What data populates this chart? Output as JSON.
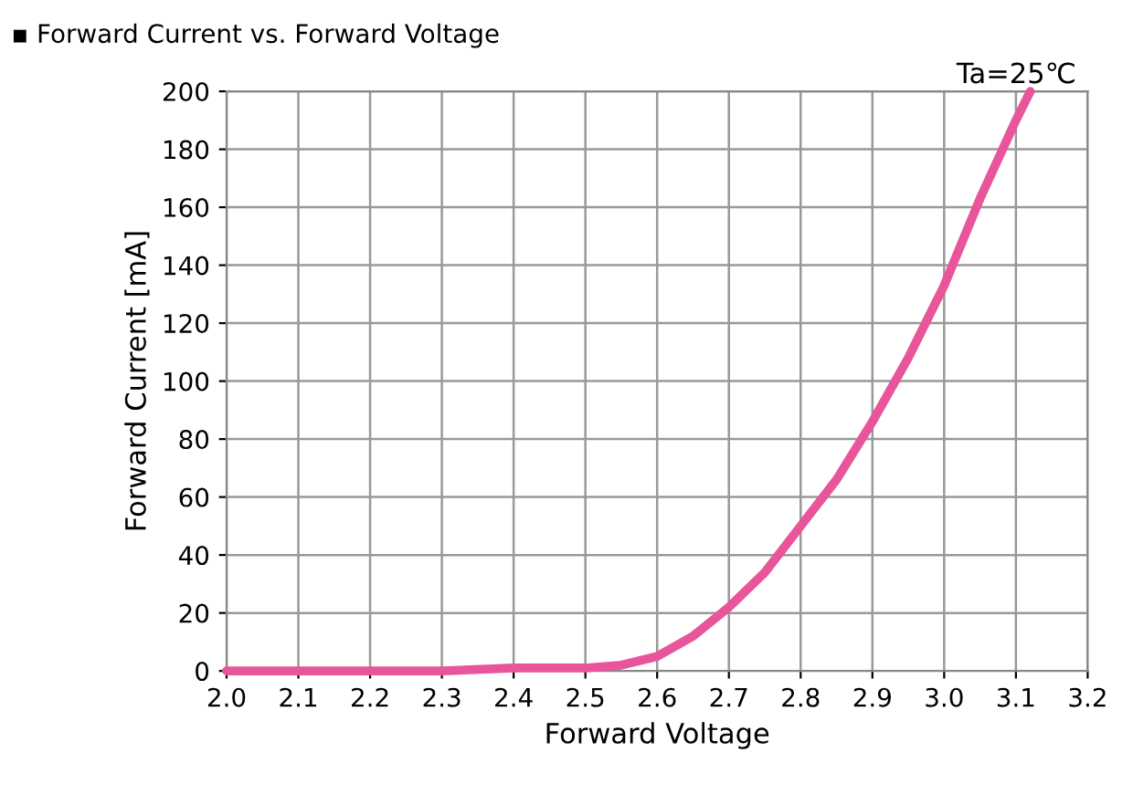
{
  "chart_data": {
    "type": "line",
    "title": "▪ Forward Current vs. Forward Voltage",
    "xlabel": "Forward Voltage",
    "ylabel": "Forward Current [mA]",
    "annotations": [
      "Ta=25℃"
    ],
    "series": [
      {
        "color": "#e8559a",
        "x": [
          2.0,
          2.1,
          2.2,
          2.3,
          2.4,
          2.5,
          2.55,
          2.6,
          2.65,
          2.7,
          2.75,
          2.8,
          2.85,
          2.9,
          2.95,
          3.0,
          3.05,
          3.1,
          3.12
        ],
        "values": [
          0,
          0,
          0,
          0,
          1,
          1,
          2,
          5,
          12,
          22,
          34,
          50,
          66,
          86,
          108,
          133,
          163,
          190,
          200
        ]
      }
    ],
    "xlim": [
      2.0,
      3.2
    ],
    "xticks": [
      {
        "value": 2.0,
        "label": "2.0"
      },
      2.1,
      2.2,
      2.3,
      2.4,
      2.5,
      2.6,
      2.7,
      2.8,
      2.9,
      {
        "value": 3.0,
        "label": "3.0"
      },
      3.1,
      3.2
    ],
    "ylim": [
      0,
      200
    ],
    "yticks": [
      0,
      20,
      40,
      60,
      80,
      100,
      120,
      140,
      160,
      180,
      200
    ],
    "grid": true,
    "legend": false,
    "marker": "none",
    "line_style": "solid"
  }
}
